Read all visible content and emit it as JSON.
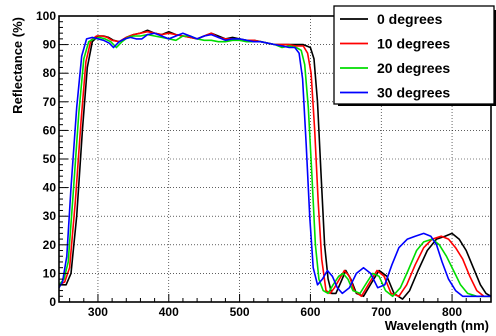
{
  "chart_data": {
    "type": "line",
    "xlabel": "Wavelength (nm)",
    "ylabel": "Reflectance (%)",
    "xlim": [
      245,
      855
    ],
    "ylim": [
      0,
      100
    ],
    "xticks": [
      300,
      400,
      500,
      600,
      700,
      800
    ],
    "yticks": [
      0,
      10,
      20,
      30,
      40,
      50,
      60,
      70,
      80,
      90,
      100
    ],
    "grid": true,
    "legend_position": "top-right",
    "series": [
      {
        "name": "0 degrees",
        "color": "#000000",
        "points": [
          [
            245,
            6
          ],
          [
            255,
            6
          ],
          [
            262,
            10
          ],
          [
            270,
            30
          ],
          [
            278,
            60
          ],
          [
            285,
            82
          ],
          [
            292,
            91
          ],
          [
            300,
            93
          ],
          [
            308,
            93
          ],
          [
            315,
            92.5
          ],
          [
            322,
            91.5
          ],
          [
            330,
            91
          ],
          [
            340,
            92.5
          ],
          [
            350,
            93.5
          ],
          [
            360,
            94
          ],
          [
            370,
            95
          ],
          [
            380,
            94
          ],
          [
            390,
            93.5
          ],
          [
            400,
            94.5
          ],
          [
            410,
            93.5
          ],
          [
            420,
            93
          ],
          [
            430,
            92.5
          ],
          [
            440,
            92
          ],
          [
            450,
            93
          ],
          [
            460,
            94
          ],
          [
            470,
            93
          ],
          [
            480,
            92
          ],
          [
            490,
            92.5
          ],
          [
            500,
            92
          ],
          [
            510,
            91.5
          ],
          [
            520,
            91.5
          ],
          [
            530,
            91
          ],
          [
            540,
            90.5
          ],
          [
            550,
            90
          ],
          [
            560,
            90
          ],
          [
            570,
            90
          ],
          [
            580,
            90
          ],
          [
            590,
            90
          ],
          [
            600,
            89
          ],
          [
            605,
            85
          ],
          [
            610,
            70
          ],
          [
            615,
            45
          ],
          [
            620,
            20
          ],
          [
            625,
            8
          ],
          [
            630,
            3
          ],
          [
            636,
            3
          ],
          [
            643,
            7
          ],
          [
            650,
            11
          ],
          [
            657,
            8
          ],
          [
            665,
            3
          ],
          [
            675,
            2
          ],
          [
            687,
            7
          ],
          [
            697,
            11
          ],
          [
            708,
            9
          ],
          [
            718,
            3
          ],
          [
            730,
            1
          ],
          [
            740,
            4
          ],
          [
            752,
            11
          ],
          [
            765,
            18
          ],
          [
            778,
            22
          ],
          [
            790,
            23
          ],
          [
            800,
            24
          ],
          [
            810,
            22
          ],
          [
            820,
            18
          ],
          [
            830,
            12
          ],
          [
            840,
            6
          ],
          [
            848,
            3
          ],
          [
            855,
            2
          ]
        ]
      },
      {
        "name": "10 degrees",
        "color": "#ff0000",
        "points": [
          [
            245,
            6
          ],
          [
            253,
            7
          ],
          [
            260,
            12
          ],
          [
            268,
            35
          ],
          [
            276,
            63
          ],
          [
            283,
            84
          ],
          [
            290,
            91.5
          ],
          [
            298,
            93
          ],
          [
            306,
            93
          ],
          [
            313,
            92.5
          ],
          [
            320,
            91.5
          ],
          [
            330,
            91
          ],
          [
            340,
            92.5
          ],
          [
            350,
            93.5
          ],
          [
            360,
            94
          ],
          [
            370,
            94.5
          ],
          [
            380,
            94
          ],
          [
            390,
            93.5
          ],
          [
            400,
            94
          ],
          [
            410,
            93.5
          ],
          [
            420,
            93
          ],
          [
            430,
            92.5
          ],
          [
            440,
            92
          ],
          [
            450,
            93
          ],
          [
            460,
            94
          ],
          [
            470,
            92.5
          ],
          [
            480,
            92
          ],
          [
            490,
            92
          ],
          [
            500,
            91.5
          ],
          [
            510,
            91.5
          ],
          [
            520,
            91.5
          ],
          [
            530,
            91
          ],
          [
            540,
            90.5
          ],
          [
            550,
            90
          ],
          [
            560,
            90
          ],
          [
            570,
            90
          ],
          [
            580,
            89.5
          ],
          [
            590,
            89.5
          ],
          [
            596,
            87
          ],
          [
            601,
            80
          ],
          [
            606,
            60
          ],
          [
            611,
            35
          ],
          [
            616,
            15
          ],
          [
            622,
            4
          ],
          [
            628,
            3
          ],
          [
            634,
            5
          ],
          [
            641,
            8
          ],
          [
            648,
            11
          ],
          [
            655,
            9
          ],
          [
            662,
            4
          ],
          [
            672,
            2
          ],
          [
            684,
            7
          ],
          [
            694,
            11
          ],
          [
            704,
            9
          ],
          [
            714,
            3
          ],
          [
            725,
            2
          ],
          [
            736,
            6
          ],
          [
            748,
            13
          ],
          [
            760,
            19
          ],
          [
            772,
            22
          ],
          [
            785,
            23
          ],
          [
            795,
            22
          ],
          [
            805,
            19
          ],
          [
            815,
            15
          ],
          [
            825,
            9
          ],
          [
            835,
            4
          ],
          [
            845,
            2
          ],
          [
            855,
            2
          ]
        ]
      },
      {
        "name": "20 degrees",
        "color": "#00dd00",
        "points": [
          [
            245,
            6
          ],
          [
            252,
            8
          ],
          [
            258,
            14
          ],
          [
            265,
            38
          ],
          [
            273,
            66
          ],
          [
            280,
            85
          ],
          [
            287,
            91
          ],
          [
            294,
            92
          ],
          [
            302,
            92.5
          ],
          [
            310,
            92
          ],
          [
            318,
            91
          ],
          [
            326,
            89
          ],
          [
            334,
            91
          ],
          [
            342,
            92.5
          ],
          [
            350,
            93
          ],
          [
            360,
            93
          ],
          [
            370,
            93.5
          ],
          [
            380,
            93
          ],
          [
            390,
            92.5
          ],
          [
            400,
            92
          ],
          [
            410,
            91.5
          ],
          [
            420,
            93
          ],
          [
            430,
            93
          ],
          [
            440,
            92
          ],
          [
            450,
            91.5
          ],
          [
            460,
            91.5
          ],
          [
            470,
            91
          ],
          [
            480,
            91
          ],
          [
            490,
            91.5
          ],
          [
            500,
            91.5
          ],
          [
            510,
            91
          ],
          [
            520,
            91
          ],
          [
            530,
            91
          ],
          [
            540,
            90.5
          ],
          [
            550,
            90
          ],
          [
            560,
            89
          ],
          [
            570,
            89.5
          ],
          [
            580,
            89
          ],
          [
            587,
            88
          ],
          [
            592,
            83
          ],
          [
            597,
            68
          ],
          [
            602,
            45
          ],
          [
            607,
            20
          ],
          [
            612,
            8
          ],
          [
            618,
            4
          ],
          [
            625,
            3
          ],
          [
            632,
            6
          ],
          [
            640,
            9
          ],
          [
            646,
            10
          ],
          [
            653,
            8
          ],
          [
            660,
            4
          ],
          [
            670,
            3
          ],
          [
            680,
            7
          ],
          [
            688,
            10
          ],
          [
            697,
            9
          ],
          [
            706,
            4
          ],
          [
            716,
            2
          ],
          [
            727,
            5
          ],
          [
            738,
            11
          ],
          [
            750,
            18
          ],
          [
            760,
            21
          ],
          [
            772,
            22
          ],
          [
            782,
            20
          ],
          [
            792,
            16
          ],
          [
            802,
            11
          ],
          [
            812,
            6
          ],
          [
            822,
            3
          ],
          [
            835,
            2
          ],
          [
            855,
            2
          ]
        ]
      },
      {
        "name": "30 degrees",
        "color": "#0000ff",
        "points": [
          [
            245,
            5
          ],
          [
            250,
            7
          ],
          [
            256,
            16
          ],
          [
            262,
            40
          ],
          [
            270,
            68
          ],
          [
            277,
            86
          ],
          [
            284,
            92
          ],
          [
            292,
            92.5
          ],
          [
            300,
            92
          ],
          [
            308,
            91.5
          ],
          [
            316,
            90.5
          ],
          [
            322,
            89
          ],
          [
            330,
            91
          ],
          [
            338,
            92
          ],
          [
            346,
            92.5
          ],
          [
            354,
            92
          ],
          [
            362,
            92
          ],
          [
            370,
            93.5
          ],
          [
            380,
            94
          ],
          [
            390,
            93
          ],
          [
            400,
            92
          ],
          [
            410,
            93
          ],
          [
            420,
            94
          ],
          [
            430,
            93
          ],
          [
            440,
            92
          ],
          [
            450,
            93
          ],
          [
            460,
            93.5
          ],
          [
            470,
            92.5
          ],
          [
            480,
            91.5
          ],
          [
            490,
            92
          ],
          [
            500,
            92
          ],
          [
            510,
            91.5
          ],
          [
            520,
            91
          ],
          [
            530,
            91
          ],
          [
            540,
            90.5
          ],
          [
            550,
            90
          ],
          [
            560,
            89.5
          ],
          [
            570,
            89
          ],
          [
            578,
            89
          ],
          [
            584,
            87
          ],
          [
            589,
            78
          ],
          [
            594,
            55
          ],
          [
            599,
            30
          ],
          [
            604,
            12
          ],
          [
            610,
            6
          ],
          [
            617,
            8
          ],
          [
            624,
            11
          ],
          [
            631,
            9
          ],
          [
            638,
            5
          ],
          [
            645,
            3
          ],
          [
            655,
            5
          ],
          [
            665,
            10
          ],
          [
            675,
            12
          ],
          [
            685,
            10
          ],
          [
            695,
            5
          ],
          [
            705,
            6
          ],
          [
            715,
            13
          ],
          [
            725,
            19
          ],
          [
            737,
            22
          ],
          [
            748,
            23
          ],
          [
            760,
            24
          ],
          [
            770,
            23
          ],
          [
            778,
            20
          ],
          [
            786,
            14
          ],
          [
            795,
            8
          ],
          [
            805,
            4
          ],
          [
            815,
            2
          ],
          [
            830,
            2
          ],
          [
            855,
            2
          ]
        ]
      }
    ]
  }
}
